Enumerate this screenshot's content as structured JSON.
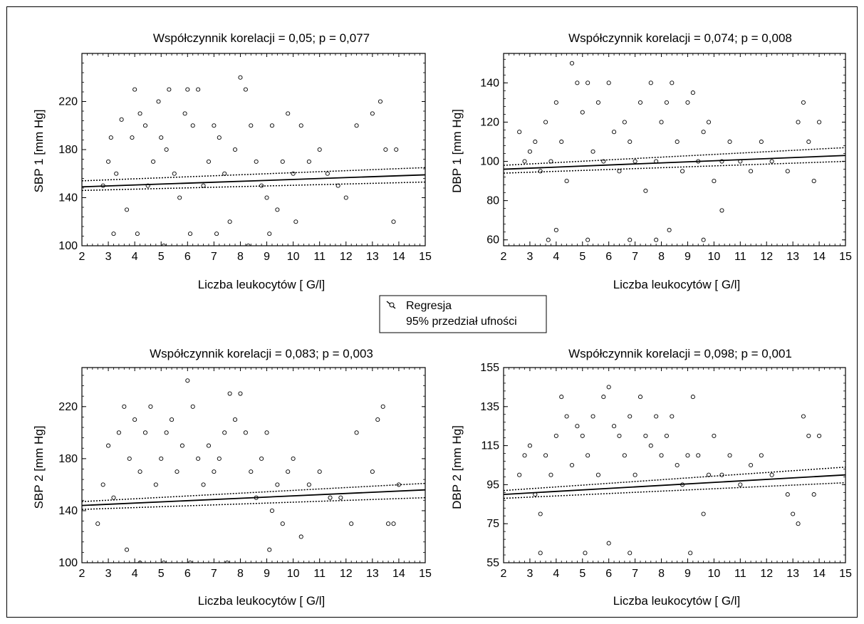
{
  "legend": {
    "regression_label": "Regresja",
    "ci_label": "95% przedział ufności"
  },
  "chart_data": [
    {
      "type": "scatter",
      "title": "Współczynnik korelacji = 0,05; p = 0,077",
      "xlabel": "Liczba leukocytów [ G/l]",
      "ylabel": "SBP 1 [mm Hg]",
      "xlim": [
        2,
        15
      ],
      "ylim": [
        100,
        260
      ],
      "xticks": [
        2,
        3,
        4,
        5,
        6,
        7,
        8,
        9,
        10,
        11,
        12,
        13,
        14,
        15
      ],
      "yticks": [
        100,
        140,
        180,
        220
      ],
      "regression": {
        "x": [
          2,
          15
        ],
        "y": [
          149,
          159
        ]
      },
      "ci_upper": {
        "x": [
          2,
          15
        ],
        "y": [
          154,
          165
        ]
      },
      "ci_lower": {
        "x": [
          2,
          15
        ],
        "y": [
          146,
          153
        ]
      },
      "points": [
        [
          2.8,
          150
        ],
        [
          3.0,
          170
        ],
        [
          3.1,
          190
        ],
        [
          3.3,
          160
        ],
        [
          3.5,
          205
        ],
        [
          3.7,
          130
        ],
        [
          3.9,
          190
        ],
        [
          4.0,
          230
        ],
        [
          4.2,
          210
        ],
        [
          4.4,
          200
        ],
        [
          4.5,
          150
        ],
        [
          4.7,
          170
        ],
        [
          4.9,
          220
        ],
        [
          5.0,
          190
        ],
        [
          5.2,
          180
        ],
        [
          5.3,
          230
        ],
        [
          5.5,
          160
        ],
        [
          5.7,
          140
        ],
        [
          5.9,
          210
        ],
        [
          6.0,
          230
        ],
        [
          6.2,
          200
        ],
        [
          6.4,
          230
        ],
        [
          6.6,
          150
        ],
        [
          6.8,
          170
        ],
        [
          7.0,
          200
        ],
        [
          7.2,
          190
        ],
        [
          7.4,
          160
        ],
        [
          7.6,
          120
        ],
        [
          7.8,
          180
        ],
        [
          8.0,
          240
        ],
        [
          8.2,
          230
        ],
        [
          8.4,
          200
        ],
        [
          8.6,
          170
        ],
        [
          8.8,
          150
        ],
        [
          9.0,
          140
        ],
        [
          9.2,
          200
        ],
        [
          9.4,
          130
        ],
        [
          9.6,
          170
        ],
        [
          9.8,
          210
        ],
        [
          10.0,
          160
        ],
        [
          10.3,
          200
        ],
        [
          10.6,
          170
        ],
        [
          11.0,
          180
        ],
        [
          11.3,
          160
        ],
        [
          11.7,
          150
        ],
        [
          12.0,
          140
        ],
        [
          12.4,
          200
        ],
        [
          13.0,
          210
        ],
        [
          13.3,
          220
        ],
        [
          13.5,
          180
        ],
        [
          13.9,
          180
        ],
        [
          13.8,
          120
        ],
        [
          3.2,
          110
        ],
        [
          4.1,
          110
        ],
        [
          5.1,
          100
        ],
        [
          6.1,
          110
        ],
        [
          7.1,
          110
        ],
        [
          8.3,
          100
        ],
        [
          9.1,
          110
        ],
        [
          10.1,
          120
        ]
      ]
    },
    {
      "type": "scatter",
      "title": "Współczynnik korelacji = 0,074; p = 0,008",
      "xlabel": "Liczba leukocytów [ G/l]",
      "ylabel": "DBP 1 [mm Hg]",
      "xlim": [
        2,
        15
      ],
      "ylim": [
        57,
        155
      ],
      "xticks": [
        2,
        3,
        4,
        5,
        6,
        7,
        8,
        9,
        10,
        11,
        12,
        13,
        14,
        15
      ],
      "yticks": [
        60,
        80,
        100,
        120,
        140
      ],
      "regression": {
        "x": [
          2,
          15
        ],
        "y": [
          96,
          103
        ]
      },
      "ci_upper": {
        "x": [
          2,
          15
        ],
        "y": [
          98,
          107
        ]
      },
      "ci_lower": {
        "x": [
          2,
          15
        ],
        "y": [
          94,
          100
        ]
      },
      "points": [
        [
          2.6,
          115
        ],
        [
          2.8,
          100
        ],
        [
          3.0,
          105
        ],
        [
          3.2,
          110
        ],
        [
          3.4,
          95
        ],
        [
          3.6,
          120
        ],
        [
          3.8,
          100
        ],
        [
          4.0,
          130
        ],
        [
          4.2,
          110
        ],
        [
          4.4,
          90
        ],
        [
          4.6,
          150
        ],
        [
          4.8,
          140
        ],
        [
          5.0,
          125
        ],
        [
          5.2,
          140
        ],
        [
          5.4,
          105
        ],
        [
          5.6,
          130
        ],
        [
          5.8,
          100
        ],
        [
          6.0,
          140
        ],
        [
          6.2,
          115
        ],
        [
          6.4,
          95
        ],
        [
          6.6,
          120
        ],
        [
          6.8,
          110
        ],
        [
          7.0,
          100
        ],
        [
          7.2,
          130
        ],
        [
          7.4,
          85
        ],
        [
          7.6,
          140
        ],
        [
          7.8,
          100
        ],
        [
          8.0,
          120
        ],
        [
          8.2,
          130
        ],
        [
          8.4,
          140
        ],
        [
          8.6,
          110
        ],
        [
          8.8,
          95
        ],
        [
          9.0,
          130
        ],
        [
          9.2,
          135
        ],
        [
          9.4,
          100
        ],
        [
          9.6,
          115
        ],
        [
          9.8,
          120
        ],
        [
          10.0,
          90
        ],
        [
          10.3,
          100
        ],
        [
          10.6,
          110
        ],
        [
          11.0,
          100
        ],
        [
          11.4,
          95
        ],
        [
          11.8,
          110
        ],
        [
          12.2,
          100
        ],
        [
          12.8,
          95
        ],
        [
          13.2,
          120
        ],
        [
          13.4,
          130
        ],
        [
          13.6,
          110
        ],
        [
          13.8,
          90
        ],
        [
          14.0,
          120
        ],
        [
          3.7,
          60
        ],
        [
          5.2,
          60
        ],
        [
          6.8,
          60
        ],
        [
          7.8,
          60
        ],
        [
          9.6,
          60
        ],
        [
          4.0,
          65
        ],
        [
          8.3,
          65
        ],
        [
          10.3,
          75
        ]
      ]
    },
    {
      "type": "scatter",
      "title": "Współczynnik korelacji = 0,083; p = 0,003",
      "xlabel": "Liczba leukocytów [ G/l]",
      "ylabel": "SBP 2 [mm Hg]",
      "xlim": [
        2,
        15
      ],
      "ylim": [
        100,
        250
      ],
      "xticks": [
        2,
        3,
        4,
        5,
        6,
        7,
        8,
        9,
        10,
        11,
        12,
        13,
        14,
        15
      ],
      "yticks": [
        100,
        140,
        180,
        220
      ],
      "regression": {
        "x": [
          2,
          15
        ],
        "y": [
          144,
          156
        ]
      },
      "ci_upper": {
        "x": [
          2,
          15
        ],
        "y": [
          147,
          161
        ]
      },
      "ci_lower": {
        "x": [
          2,
          15
        ],
        "y": [
          141,
          150
        ]
      },
      "points": [
        [
          2.6,
          130
        ],
        [
          2.8,
          160
        ],
        [
          3.0,
          190
        ],
        [
          3.2,
          150
        ],
        [
          3.4,
          200
        ],
        [
          3.6,
          220
        ],
        [
          3.8,
          180
        ],
        [
          4.0,
          210
        ],
        [
          4.2,
          170
        ],
        [
          4.4,
          200
        ],
        [
          4.6,
          220
        ],
        [
          4.8,
          160
        ],
        [
          5.0,
          180
        ],
        [
          5.2,
          200
        ],
        [
          5.4,
          210
        ],
        [
          5.6,
          170
        ],
        [
          5.8,
          190
        ],
        [
          6.0,
          240
        ],
        [
          6.2,
          220
        ],
        [
          6.4,
          180
        ],
        [
          6.6,
          160
        ],
        [
          6.8,
          190
        ],
        [
          7.0,
          170
        ],
        [
          7.2,
          180
        ],
        [
          7.4,
          200
        ],
        [
          7.6,
          230
        ],
        [
          7.8,
          210
        ],
        [
          8.0,
          230
        ],
        [
          8.2,
          200
        ],
        [
          8.4,
          170
        ],
        [
          8.6,
          150
        ],
        [
          8.8,
          180
        ],
        [
          9.0,
          200
        ],
        [
          9.2,
          140
        ],
        [
          9.4,
          160
        ],
        [
          9.6,
          130
        ],
        [
          9.8,
          170
        ],
        [
          10.0,
          180
        ],
        [
          10.3,
          120
        ],
        [
          10.6,
          160
        ],
        [
          11.0,
          170
        ],
        [
          11.4,
          150
        ],
        [
          11.8,
          150
        ],
        [
          12.2,
          130
        ],
        [
          12.4,
          200
        ],
        [
          13.0,
          170
        ],
        [
          13.2,
          210
        ],
        [
          13.4,
          220
        ],
        [
          13.6,
          130
        ],
        [
          13.8,
          130
        ],
        [
          14.0,
          160
        ],
        [
          3.7,
          110
        ],
        [
          5.1,
          100
        ],
        [
          6.1,
          100
        ],
        [
          7.5,
          100
        ],
        [
          9.1,
          110
        ],
        [
          4.2,
          100
        ]
      ]
    },
    {
      "type": "scatter",
      "title": "Współczynnik korelacji = 0,098; p = 0,001",
      "xlabel": "Liczba leukocytów [ G/l]",
      "ylabel": "DBP 2 [mm Hg]",
      "xlim": [
        2,
        15
      ],
      "ylim": [
        55,
        155
      ],
      "xticks": [
        2,
        3,
        4,
        5,
        6,
        7,
        8,
        9,
        10,
        11,
        12,
        13,
        14,
        15
      ],
      "yticks": [
        55,
        75,
        95,
        115,
        135,
        155
      ],
      "regression": {
        "x": [
          2,
          15
        ],
        "y": [
          90,
          100
        ]
      },
      "ci_upper": {
        "x": [
          2,
          15
        ],
        "y": [
          92,
          104
        ]
      },
      "ci_lower": {
        "x": [
          2,
          15
        ],
        "y": [
          88,
          96
        ]
      },
      "points": [
        [
          2.6,
          100
        ],
        [
          2.8,
          110
        ],
        [
          3.0,
          115
        ],
        [
          3.2,
          90
        ],
        [
          3.4,
          80
        ],
        [
          3.6,
          110
        ],
        [
          3.8,
          100
        ],
        [
          4.0,
          120
        ],
        [
          4.2,
          140
        ],
        [
          4.4,
          130
        ],
        [
          4.6,
          105
        ],
        [
          4.8,
          125
        ],
        [
          5.0,
          120
        ],
        [
          5.2,
          110
        ],
        [
          5.4,
          130
        ],
        [
          5.6,
          100
        ],
        [
          5.8,
          140
        ],
        [
          6.0,
          145
        ],
        [
          6.2,
          125
        ],
        [
          6.4,
          120
        ],
        [
          6.6,
          110
        ],
        [
          6.8,
          130
        ],
        [
          7.0,
          100
        ],
        [
          7.2,
          140
        ],
        [
          7.4,
          120
        ],
        [
          7.6,
          115
        ],
        [
          7.8,
          130
        ],
        [
          8.0,
          110
        ],
        [
          8.2,
          120
        ],
        [
          8.4,
          130
        ],
        [
          8.6,
          105
        ],
        [
          8.8,
          95
        ],
        [
          9.0,
          110
        ],
        [
          9.2,
          140
        ],
        [
          9.4,
          110
        ],
        [
          9.6,
          80
        ],
        [
          9.8,
          100
        ],
        [
          10.0,
          120
        ],
        [
          10.3,
          100
        ],
        [
          10.6,
          110
        ],
        [
          11.0,
          95
        ],
        [
          11.4,
          105
        ],
        [
          11.8,
          110
        ],
        [
          12.2,
          100
        ],
        [
          12.8,
          90
        ],
        [
          13.0,
          80
        ],
        [
          13.2,
          75
        ],
        [
          13.4,
          130
        ],
        [
          13.6,
          120
        ],
        [
          13.8,
          90
        ],
        [
          14.0,
          120
        ],
        [
          3.4,
          60
        ],
        [
          5.1,
          60
        ],
        [
          6.0,
          65
        ],
        [
          6.8,
          60
        ],
        [
          9.1,
          60
        ]
      ]
    }
  ]
}
